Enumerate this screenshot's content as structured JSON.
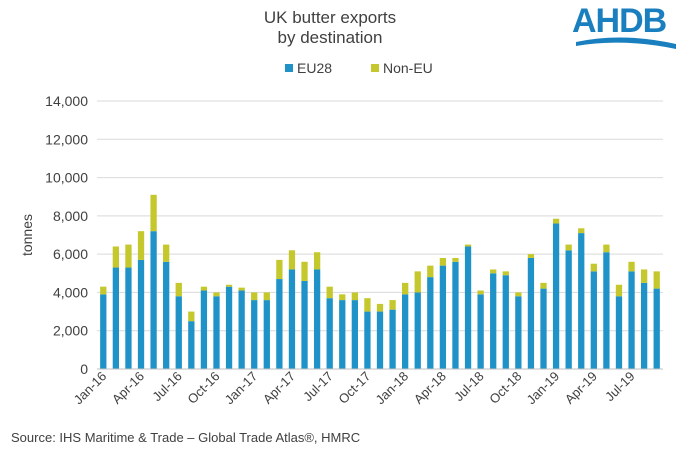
{
  "logo": {
    "text": "AHDB",
    "color": "#1a7fbf"
  },
  "source": "Source: IHS Maritime & Trade – Global Trade Atlas®, HMRC",
  "colors": {
    "eu": "#1f93c7",
    "noneu": "#c4c82c",
    "grid": "#d9d9d9",
    "axis": "#bfbfbf"
  },
  "chart_data": {
    "type": "bar",
    "stacked": true,
    "title_line1": "UK butter exports",
    "title_line2": "by destination",
    "ylabel": "tonnes",
    "xlabel": "",
    "ylim": [
      0,
      14000
    ],
    "yticks": [
      0,
      2000,
      4000,
      6000,
      8000,
      10000,
      12000,
      14000
    ],
    "ytick_labels": [
      "0",
      "2,000",
      "4,000",
      "6,000",
      "8,000",
      "10,000",
      "12,000",
      "14,000"
    ],
    "grid": true,
    "legend_position": "top-center",
    "categories": [
      "Jan-16",
      "Feb-16",
      "Mar-16",
      "Apr-16",
      "May-16",
      "Jun-16",
      "Jul-16",
      "Aug-16",
      "Sep-16",
      "Oct-16",
      "Nov-16",
      "Dec-16",
      "Jan-17",
      "Feb-17",
      "Mar-17",
      "Apr-17",
      "May-17",
      "Jun-17",
      "Jul-17",
      "Aug-17",
      "Sep-17",
      "Oct-17",
      "Nov-17",
      "Dec-17",
      "Jan-18",
      "Feb-18",
      "Mar-18",
      "Apr-18",
      "May-18",
      "Jun-18",
      "Jul-18",
      "Aug-18",
      "Sep-18",
      "Oct-18",
      "Nov-18",
      "Dec-18",
      "Jan-19",
      "Feb-19",
      "Mar-19",
      "Apr-19",
      "May-19",
      "Jun-19",
      "Jul-19",
      "Aug-19",
      "Sep-19"
    ],
    "xtick_labels": [
      "Jan-16",
      "Apr-16",
      "Jul-16",
      "Oct-16",
      "Jan-17",
      "Apr-17",
      "Jul-17",
      "Oct-17",
      "Jan-18",
      "Apr-18",
      "Jul-18",
      "Oct-18",
      "Jan-19",
      "Apr-19",
      "Jul-19"
    ],
    "series": [
      {
        "name": "EU28",
        "values": [
          3900,
          5300,
          5300,
          5700,
          7200,
          5600,
          3800,
          2500,
          4100,
          3800,
          4300,
          4100,
          3600,
          3600,
          4700,
          5200,
          4600,
          5200,
          3700,
          3600,
          3600,
          3000,
          3000,
          3100,
          3900,
          4000,
          4800,
          5400,
          5600,
          6400,
          3900,
          5000,
          4900,
          3800,
          5800,
          4200,
          7600,
          6200,
          7100,
          5100,
          6100,
          3800,
          5100,
          4500,
          4200
        ]
      },
      {
        "name": "Non-EU",
        "values": [
          400,
          1100,
          1200,
          1500,
          1900,
          900,
          700,
          500,
          200,
          200,
          100,
          150,
          400,
          400,
          1000,
          1000,
          1000,
          900,
          600,
          300,
          400,
          700,
          400,
          500,
          600,
          1100,
          600,
          400,
          200,
          100,
          200,
          200,
          200,
          200,
          200,
          300,
          250,
          300,
          250,
          400,
          400,
          600,
          500,
          700,
          900
        ]
      }
    ]
  }
}
